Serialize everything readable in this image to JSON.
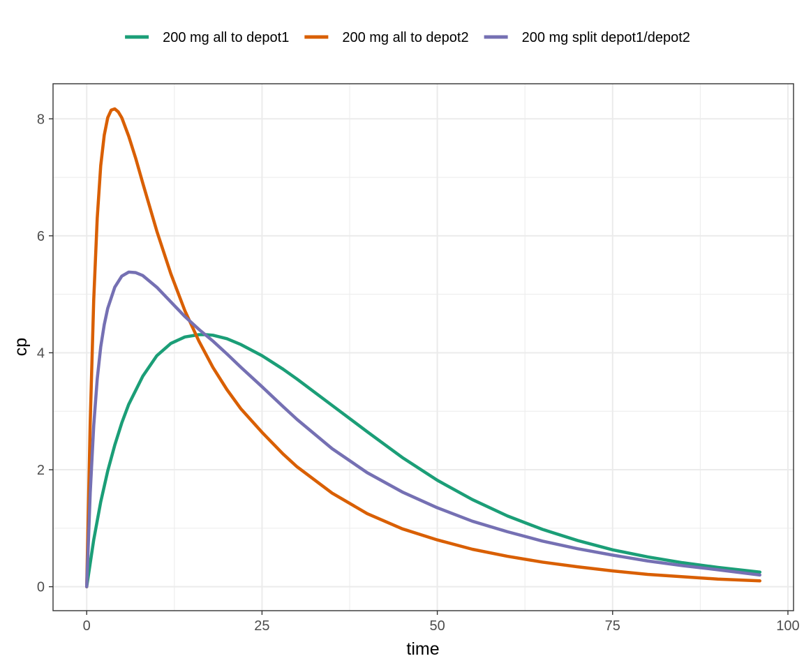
{
  "chart_data": {
    "type": "line",
    "xlabel": "time",
    "ylabel": "cp",
    "xlim": [
      -4.8,
      100.8
    ],
    "ylim": [
      -0.41,
      8.6
    ],
    "xticks": [
      0,
      25,
      50,
      75,
      100
    ],
    "yticks": [
      0,
      2,
      4,
      6,
      8
    ],
    "xtick_labels": [
      "0",
      "25",
      "50",
      "75",
      "100"
    ],
    "ytick_labels": [
      "0",
      "2",
      "4",
      "6",
      "8"
    ],
    "grid": true,
    "legend_position": "top",
    "series": [
      {
        "name": "200 mg all to depot1",
        "color": "#1b9e77",
        "x": [
          0,
          1,
          2,
          3,
          4,
          5,
          6,
          8,
          10,
          12,
          14,
          16,
          17,
          18,
          20,
          22,
          25,
          28,
          30,
          35,
          40,
          45,
          50,
          55,
          60,
          65,
          70,
          75,
          80,
          85,
          90,
          96
        ],
        "y": [
          0,
          0.8,
          1.45,
          1.98,
          2.42,
          2.8,
          3.12,
          3.6,
          3.95,
          4.16,
          4.27,
          4.31,
          4.31,
          4.3,
          4.24,
          4.14,
          3.95,
          3.72,
          3.55,
          3.1,
          2.65,
          2.21,
          1.82,
          1.49,
          1.21,
          0.98,
          0.79,
          0.63,
          0.51,
          0.41,
          0.33,
          0.25
        ]
      },
      {
        "name": "200 mg all to depot2",
        "color": "#d95f02",
        "x": [
          0,
          0.5,
          1,
          1.5,
          2,
          2.5,
          3,
          3.5,
          4,
          4.5,
          5,
          6,
          7,
          8,
          10,
          12,
          14,
          16,
          18,
          20,
          22,
          25,
          28,
          30,
          35,
          40,
          45,
          50,
          55,
          60,
          65,
          70,
          75,
          80,
          85,
          90,
          96
        ],
        "y": [
          0,
          2.8,
          4.9,
          6.3,
          7.2,
          7.72,
          8.02,
          8.15,
          8.17,
          8.12,
          8.02,
          7.7,
          7.32,
          6.9,
          6.08,
          5.35,
          4.72,
          4.2,
          3.75,
          3.37,
          3.04,
          2.64,
          2.27,
          2.05,
          1.6,
          1.25,
          0.99,
          0.8,
          0.64,
          0.52,
          0.42,
          0.34,
          0.27,
          0.21,
          0.17,
          0.13,
          0.1
        ]
      },
      {
        "name": "200 mg split depot1/depot2",
        "color": "#7570b3",
        "x": [
          0,
          0.5,
          1,
          1.5,
          2,
          2.5,
          3,
          4,
          5,
          6,
          7,
          8,
          10,
          12,
          14,
          16,
          18,
          20,
          22,
          25,
          28,
          30,
          35,
          40,
          45,
          50,
          55,
          60,
          65,
          70,
          75,
          80,
          85,
          90,
          96
        ],
        "y": [
          0,
          1.6,
          2.75,
          3.55,
          4.1,
          4.48,
          4.76,
          5.12,
          5.31,
          5.38,
          5.37,
          5.32,
          5.12,
          4.87,
          4.62,
          4.4,
          4.2,
          3.98,
          3.75,
          3.42,
          3.08,
          2.86,
          2.36,
          1.95,
          1.62,
          1.35,
          1.12,
          0.94,
          0.78,
          0.65,
          0.54,
          0.44,
          0.36,
          0.29,
          0.2
        ]
      }
    ]
  }
}
